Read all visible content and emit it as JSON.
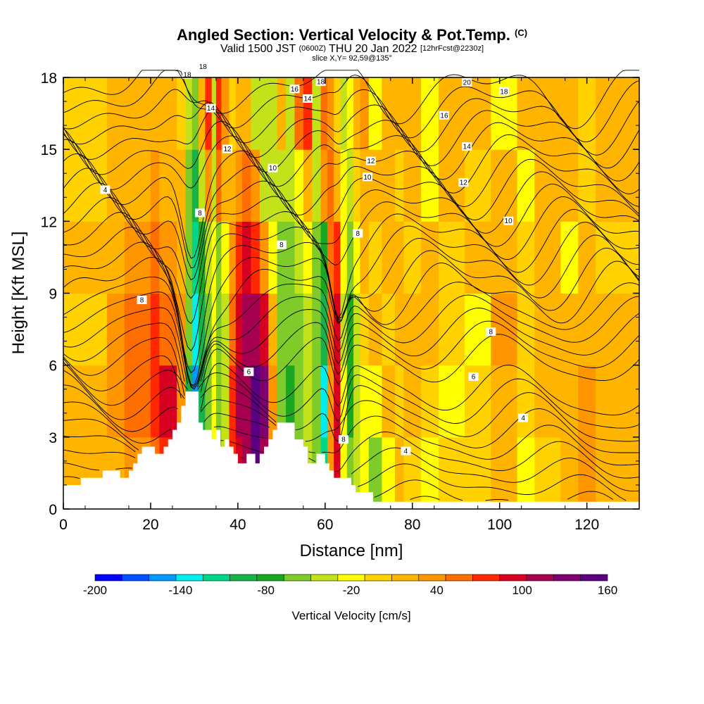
{
  "title": {
    "main": "Angled Section: Vertical Velocity & Pot.Temp.",
    "units": "(C)",
    "line2_a": "Valid 1500 JST",
    "line2_b": "(0600Z)",
    "line2_c": "THU 20 Jan 2022",
    "line2_d": "[12hrFcst@2230z]",
    "line3": "slice X,Y= 92,59@135°"
  },
  "chart_data": {
    "type": "heatmap",
    "xlabel": "Distance [nm]",
    "ylabel": "Height [Kft MSL]",
    "xlim": [
      0,
      132
    ],
    "ylim": [
      0,
      18
    ],
    "xticks": [
      "0",
      "20",
      "40",
      "60",
      "80",
      "100",
      "120"
    ],
    "xtick_values": [
      0,
      20,
      40,
      60,
      80,
      100,
      120
    ],
    "yticks": [
      "0",
      "3",
      "6",
      "9",
      "12",
      "15",
      "18"
    ],
    "ytick_values": [
      0,
      3,
      6,
      9,
      12,
      15,
      18
    ],
    "colorbar": {
      "label": "Vertical Velocity [cm/s]",
      "min": -200,
      "max": 160,
      "step": 20,
      "tick_labels": [
        "-200",
        "-140",
        "-80",
        "-20",
        "40",
        "100",
        "160"
      ],
      "tick_values": [
        -200,
        -140,
        -80,
        -20,
        40,
        100,
        160
      ],
      "colors": [
        "#0000ff",
        "#0050ff",
        "#0099ff",
        "#00eeee",
        "#00d68a",
        "#17b34a",
        "#1aa823",
        "#7ecb2a",
        "#c3e219",
        "#ffff00",
        "#ffd200",
        "#ffb400",
        "#ff9600",
        "#ff6e00",
        "#ff2800",
        "#d80020",
        "#a80050",
        "#800070",
        "#5a0080"
      ]
    },
    "vertical_velocity_cells": {
      "x_breaks": [
        0,
        10,
        14,
        20,
        22,
        26,
        28,
        29.5,
        31,
        32.5,
        34,
        35,
        36.2,
        38,
        39.5,
        41,
        43,
        45,
        47,
        49,
        51,
        53,
        55,
        57,
        59,
        60.5,
        62,
        63.5,
        65,
        66.5,
        68,
        70,
        73,
        76,
        78,
        82,
        86,
        92,
        98,
        104,
        108,
        114,
        118,
        122,
        132
      ],
      "z_breaks": [
        0,
        3,
        6,
        9,
        12,
        15,
        18
      ],
      "values": [
        [
          20,
          30,
          40,
          60,
          80,
          40,
          -60,
          -120,
          -80,
          -60,
          -20,
          -60,
          -40,
          80,
          100,
          120,
          160,
          120,
          40,
          -60,
          -80,
          -60,
          -40,
          -60,
          -120,
          40,
          100,
          -20,
          -60,
          -40,
          -20,
          -60,
          -20,
          20,
          0,
          -20,
          0,
          0,
          20,
          -20,
          0,
          20,
          40,
          20
        ],
        [
          20,
          40,
          60,
          80,
          100,
          40,
          -100,
          -160,
          -100,
          -60,
          -20,
          -60,
          -40,
          80,
          120,
          120,
          160,
          140,
          40,
          -60,
          -80,
          -60,
          -40,
          -60,
          -140,
          40,
          100,
          -20,
          -80,
          -40,
          -20,
          -20,
          20,
          0,
          20,
          0,
          -20,
          0,
          20,
          0,
          20,
          20,
          40,
          20
        ],
        [
          0,
          40,
          60,
          80,
          60,
          40,
          -60,
          -140,
          -100,
          -60,
          -20,
          -60,
          -40,
          60,
          100,
          120,
          120,
          100,
          20,
          -60,
          -60,
          -60,
          -40,
          -60,
          -100,
          60,
          100,
          -40,
          -80,
          -40,
          0,
          20,
          0,
          20,
          20,
          20,
          0,
          -20,
          40,
          0,
          20,
          20,
          20,
          20
        ],
        [
          20,
          20,
          40,
          60,
          40,
          20,
          -60,
          -120,
          -80,
          -40,
          -20,
          -60,
          -20,
          40,
          80,
          100,
          80,
          40,
          -20,
          -60,
          -60,
          -40,
          -20,
          -60,
          -80,
          60,
          80,
          -20,
          -60,
          -20,
          20,
          0,
          20,
          20,
          0,
          20,
          0,
          20,
          20,
          0,
          20,
          -20,
          20,
          0
        ],
        [
          0,
          20,
          20,
          40,
          20,
          20,
          -60,
          -100,
          -40,
          40,
          -40,
          60,
          20,
          20,
          40,
          60,
          40,
          -40,
          -40,
          -40,
          -40,
          -20,
          20,
          -40,
          40,
          60,
          20,
          -20,
          -40,
          0,
          20,
          20,
          20,
          0,
          20,
          -20,
          20,
          0,
          20,
          -20,
          20,
          20,
          0,
          20
        ],
        [
          0,
          20,
          20,
          20,
          20,
          0,
          -40,
          -60,
          20,
          80,
          -40,
          80,
          40,
          0,
          20,
          20,
          -40,
          -40,
          -40,
          20,
          -40,
          60,
          80,
          -40,
          60,
          40,
          0,
          -40,
          -20,
          20,
          40,
          -20,
          20,
          20,
          20,
          -20,
          20,
          20,
          -20,
          20,
          20,
          20,
          0,
          20
        ]
      ]
    },
    "terrain_heights_kft": [
      [
        0,
        1.0
      ],
      [
        4,
        1.0
      ],
      [
        4,
        1.3
      ],
      [
        9,
        1.3
      ],
      [
        9,
        1.6
      ],
      [
        12,
        1.6
      ],
      [
        13,
        1.6
      ],
      [
        13,
        1.3
      ],
      [
        15,
        1.3
      ],
      [
        15,
        1.6
      ],
      [
        16,
        1.6
      ],
      [
        16,
        1.9
      ],
      [
        17,
        1.9
      ],
      [
        17,
        2.3
      ],
      [
        18,
        2.3
      ],
      [
        18,
        2.6
      ],
      [
        21,
        2.6
      ],
      [
        21,
        2.3
      ],
      [
        23,
        2.3
      ],
      [
        23,
        2.6
      ],
      [
        24,
        2.6
      ],
      [
        24,
        2.9
      ],
      [
        25,
        2.9
      ],
      [
        25,
        3.3
      ],
      [
        26,
        3.3
      ],
      [
        26,
        3.6
      ],
      [
        27,
        3.6
      ],
      [
        27,
        4.3
      ],
      [
        28,
        4.3
      ],
      [
        28,
        4.9
      ],
      [
        31,
        4.9
      ],
      [
        31,
        3.6
      ],
      [
        32,
        3.6
      ],
      [
        32,
        3.3
      ],
      [
        34,
        3.3
      ],
      [
        34,
        2.9
      ],
      [
        35,
        2.9
      ],
      [
        35,
        3.3
      ],
      [
        36,
        3.3
      ],
      [
        36,
        2.6
      ],
      [
        37,
        2.6
      ],
      [
        37,
        2.9
      ],
      [
        38,
        2.9
      ],
      [
        38,
        2.6
      ],
      [
        39,
        2.6
      ],
      [
        39,
        2.3
      ],
      [
        40,
        2.3
      ],
      [
        40,
        1.9
      ],
      [
        42,
        1.9
      ],
      [
        42,
        2.3
      ],
      [
        44,
        2.3
      ],
      [
        44,
        1.9
      ],
      [
        45,
        1.9
      ],
      [
        45,
        2.3
      ],
      [
        46,
        2.3
      ],
      [
        46,
        2.6
      ],
      [
        47,
        2.6
      ],
      [
        47,
        2.9
      ],
      [
        48,
        2.9
      ],
      [
        48,
        3.3
      ],
      [
        49,
        3.3
      ],
      [
        49,
        3.6
      ],
      [
        53,
        3.6
      ],
      [
        53,
        2.9
      ],
      [
        55,
        2.9
      ],
      [
        55,
        2.6
      ],
      [
        56,
        2.6
      ],
      [
        56,
        1.9
      ],
      [
        58,
        1.9
      ],
      [
        58,
        2.3
      ],
      [
        60,
        2.3
      ],
      [
        60,
        1.9
      ],
      [
        61,
        1.9
      ],
      [
        61,
        1.6
      ],
      [
        62,
        1.6
      ],
      [
        62,
        1.3
      ],
      [
        66,
        1.3
      ],
      [
        66,
        1.0
      ],
      [
        67,
        1.0
      ],
      [
        67,
        0.7
      ],
      [
        71,
        0.7
      ],
      [
        71,
        0.3
      ],
      [
        132,
        0.3
      ]
    ],
    "potential_temperature_contours": {
      "levels": [
        2,
        4,
        6,
        8,
        10,
        12,
        14,
        16,
        18,
        20
      ],
      "labels_shown": [
        "18",
        "18",
        "14",
        "12",
        "10",
        "8",
        "8",
        "8",
        "6",
        "4",
        "18",
        "16",
        "14",
        "12",
        "10",
        "8",
        "8",
        "4",
        "20",
        "18",
        "16",
        "14",
        "12",
        "10",
        "8",
        "6",
        "4"
      ]
    }
  }
}
